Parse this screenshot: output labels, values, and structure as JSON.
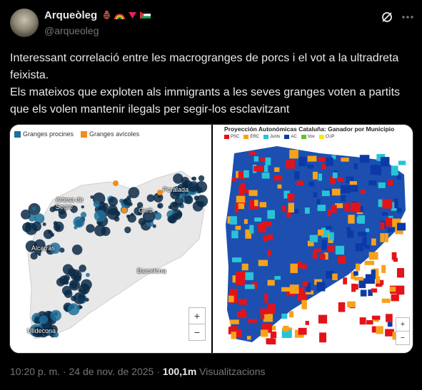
{
  "author": {
    "name": "Arqueòleg",
    "handle": "@arqueoleg"
  },
  "post": {
    "text": "Interessant correlació entre les macrogranges de porcs i el vot a la ultradreta feixista.\nEls mateixos que exploten als immigrants a les seves granges voten a partits que els volen mantenir ilegals per segir-los esclavitzant"
  },
  "left_map": {
    "legend": [
      "Granges procines",
      "Granges avícoles"
    ],
    "colors": {
      "pig": "#0a2a47",
      "poultry": "#f28c1a"
    },
    "places": [
      "Peralada",
      "Artesa de Segre",
      "Gurb",
      "Alcarràs",
      "Barcelona",
      "Ulldecona"
    ],
    "zoom_in": "+",
    "zoom_out": "−"
  },
  "right_map": {
    "title": "Proyección Autonómicas Cataluña: Ganador por Municipio",
    "legend": [
      "PSC",
      "ERC",
      "Junts",
      "AC",
      "Vox",
      "CUP"
    ],
    "legend_colors": [
      "#e3131a",
      "#f7a21b",
      "#27c4d8",
      "#0b3aa8",
      "#5ac435",
      "#ffea00"
    ],
    "zoom_in": "+",
    "zoom_out": "−"
  },
  "meta": {
    "time": "10:20 p. m. · 24 de nov. de 2025 · ",
    "views": "100,1m",
    "views_label": " Visualitzacions"
  }
}
